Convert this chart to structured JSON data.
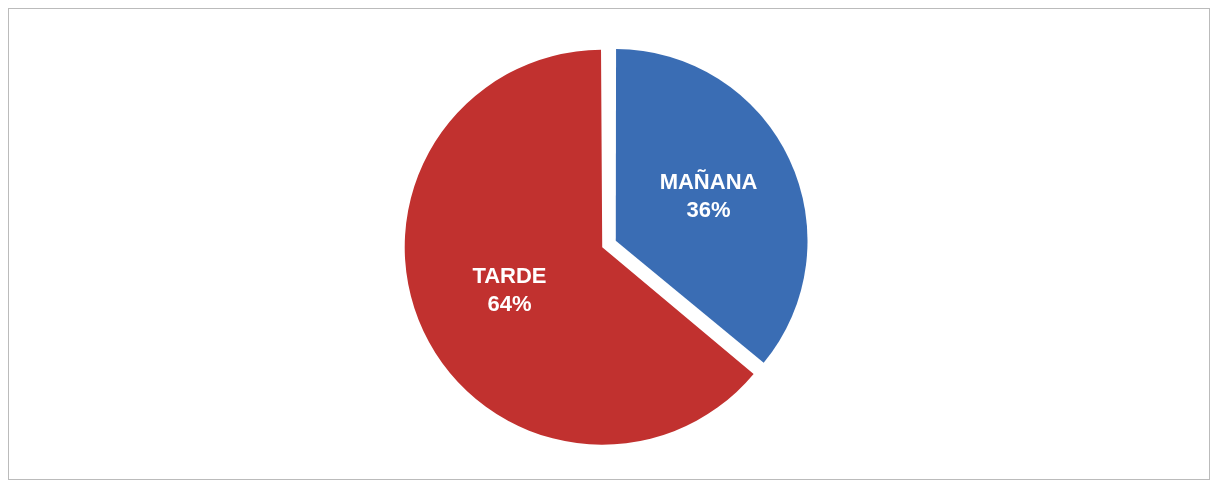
{
  "chart_data": {
    "type": "pie",
    "categories": [
      "MAÑANA",
      "TARDE"
    ],
    "values": [
      36,
      64
    ],
    "colors": [
      "#3a6db4",
      "#c1312f"
    ],
    "value_labels": [
      "36%",
      "64%"
    ]
  }
}
